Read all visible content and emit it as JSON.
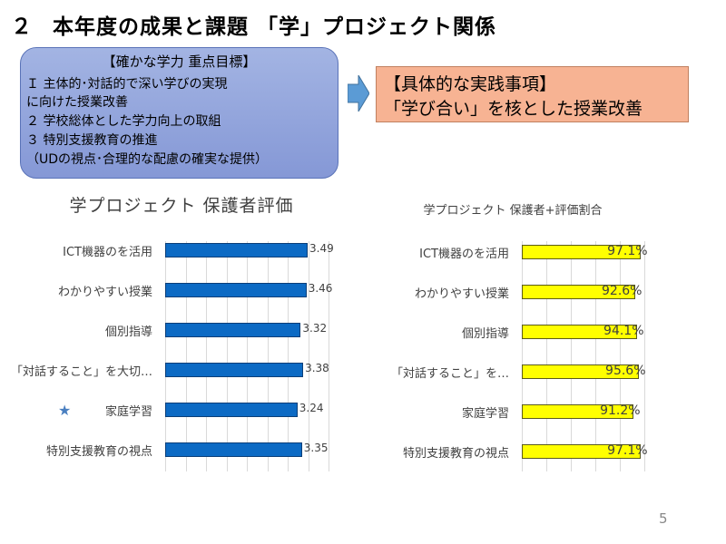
{
  "slide": {
    "title_number": "２",
    "title_text": "本年度の成果と課題 「学」プロジェクト関係",
    "page_number": "5"
  },
  "goals": {
    "heading": "【確かな学力 重点目標】",
    "lines": [
      "Ｉ 主体的･対話的で深い学びの実現",
      " に向けた授業改善",
      "２ 学校総体とした学力向上の取組",
      "３ 特別支援教育の推進",
      "（UDの視点･合理的な配慮の確実な提供）"
    ],
    "color": "#8fa3dc"
  },
  "practice": {
    "heading": "【具体的な実践事項】",
    "text": "「学び合い」を核とした授業改善",
    "color": "#f7b393"
  },
  "arrow": {
    "icon": "right-arrow-icon",
    "color": "#5b9bd5"
  },
  "star": {
    "icon": "star-icon",
    "color": "#4a7fc0"
  },
  "chart_data": [
    {
      "type": "bar",
      "orientation": "horizontal",
      "title": "学プロジェクト 保護者評価",
      "categories": [
        "ICT機器のを活用",
        "わかりやすい授業",
        "個別指導",
        "「対話すること」を大切…",
        "家庭学習",
        "特別支援教育の視点"
      ],
      "values": [
        3.49,
        3.46,
        3.32,
        3.38,
        3.24,
        3.35
      ],
      "data_labels": [
        "3.49",
        "3.46",
        "3.32",
        "3.38",
        "3.24",
        "3.35"
      ],
      "xlim": [
        0,
        4
      ],
      "grid_step": 0.5,
      "grid": true,
      "bar_color": "#0c6ac4"
    },
    {
      "type": "bar",
      "orientation": "horizontal",
      "title": "学プロジェクト 保護者+評価割合",
      "categories": [
        "ICT機器のを活用",
        "わかりやすい授業",
        "個別指導",
        "「対話すること」を…",
        "家庭学習",
        "特別支援教育の視点"
      ],
      "values": [
        97.1,
        92.6,
        94.1,
        95.6,
        91.2,
        97.1
      ],
      "data_labels": [
        "97.1%",
        "92.6%",
        "94.1%",
        "95.6%",
        "91.2%",
        "97.1%"
      ],
      "xlim": [
        0,
        100
      ],
      "grid_step": 20,
      "grid": true,
      "bar_color": "#ffff00"
    }
  ]
}
